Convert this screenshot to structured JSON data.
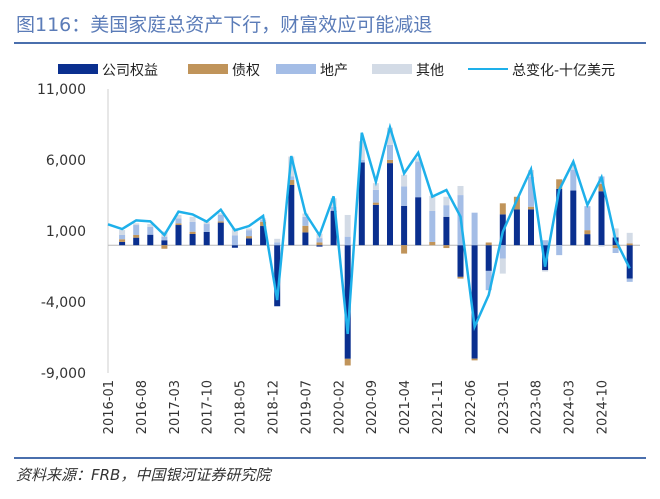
{
  "title": "图116：美国家庭总资产下行，财富效应可能减退",
  "source": "资料来源：FRB，中国银河证券研究院",
  "chart_data": {
    "type": "bar+line",
    "stacked": true,
    "categories": [
      "2016-01",
      "2016-04",
      "2016-07",
      "2016-10",
      "2017-01",
      "2017-04",
      "2017-07",
      "2017-10",
      "2018-01",
      "2018-04",
      "2018-07",
      "2018-10",
      "2019-01",
      "2019-04",
      "2019-07",
      "2019-10",
      "2020-01",
      "2020-04",
      "2020-07",
      "2020-10",
      "2021-01",
      "2021-04",
      "2021-07",
      "2021-10",
      "2022-01",
      "2022-04",
      "2022-07",
      "2022-10",
      "2023-01",
      "2023-04",
      "2023-07",
      "2023-10",
      "2024-01",
      "2024-04",
      "2024-07",
      "2024-10",
      "2025-01",
      "2025-04"
    ],
    "x_tick_labels": [
      "2016-01",
      "2016-08",
      "2017-03",
      "2017-10",
      "2018-05",
      "2018-12",
      "2019-07",
      "2020-02",
      "2020-09",
      "2021-04",
      "2021-11",
      "2022-06",
      "2023-01",
      "2023-08",
      "2024-03",
      "2024-10"
    ],
    "y_tick_labels": [
      "11,000",
      "6,000",
      "1,000",
      "-4,000",
      "-9,000"
    ],
    "ylim": [
      -9000,
      11000
    ],
    "y_ticks": [
      11000,
      6000,
      1000,
      -4000,
      -9000
    ],
    "grid": false,
    "legend_position": "top",
    "series": [
      {
        "name": "公司权益",
        "kind": "bar",
        "color": "#0a2f8f",
        "values": [
          0,
          230,
          530,
          740,
          350,
          1420,
          790,
          930,
          1590,
          -180,
          480,
          1350,
          -4300,
          4240,
          900,
          -100,
          2430,
          -8000,
          5830,
          2840,
          5780,
          2770,
          3380,
          0,
          2000,
          -2230,
          -7990,
          -1810,
          2170,
          2520,
          2520,
          -1760,
          3960,
          3850,
          780,
          3800,
          550,
          -2350
        ]
      },
      {
        "name": "债权",
        "kind": "bar",
        "color": "#c0945a",
        "values": [
          0,
          190,
          190,
          0,
          -250,
          120,
          160,
          0,
          90,
          0,
          160,
          300,
          0,
          350,
          470,
          200,
          0,
          -470,
          0,
          160,
          230,
          -590,
          0,
          230,
          -200,
          -120,
          -120,
          190,
          780,
          890,
          190,
          0,
          680,
          0,
          280,
          520,
          -200,
          120
        ]
      },
      {
        "name": "地产",
        "kind": "bar",
        "color": "#a4bde6",
        "values": [
          0,
          300,
          700,
          560,
          250,
          350,
          700,
          560,
          450,
          700,
          420,
          120,
          200,
          250,
          630,
          300,
          280,
          600,
          190,
          900,
          1060,
          1370,
          2510,
          2180,
          820,
          3530,
          2290,
          -1360,
          -940,
          0,
          2110,
          350,
          -700,
          1470,
          1690,
          520,
          -350,
          -230
        ]
      },
      {
        "name": "其他",
        "kind": "bar",
        "color": "#d3dbe6",
        "values": [
          0,
          350,
          120,
          190,
          370,
          240,
          350,
          160,
          120,
          500,
          120,
          120,
          250,
          1400,
          230,
          300,
          600,
          1530,
          1300,
          470,
          1200,
          820,
          230,
          1060,
          590,
          640,
          0,
          0,
          -1060,
          0,
          470,
          -100,
          0,
          350,
          0,
          -100,
          630,
          750
        ]
      },
      {
        "name": "总变化-十亿美元",
        "kind": "line",
        "color": "#1eb0ea",
        "values": [
          1470,
          1140,
          1750,
          1680,
          720,
          2360,
          2170,
          1660,
          2500,
          1050,
          1350,
          2060,
          -3860,
          6280,
          2240,
          700,
          3440,
          -6250,
          7920,
          4470,
          8300,
          5060,
          6510,
          3420,
          3890,
          2010,
          -5740,
          -3510,
          950,
          3180,
          5340,
          -1510,
          3890,
          5880,
          2830,
          4780,
          370,
          -1630
        ]
      }
    ]
  }
}
